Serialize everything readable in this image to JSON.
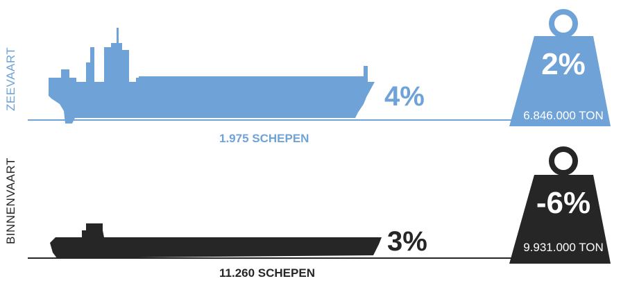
{
  "colors": {
    "sea": "#6fa3d8",
    "inland": "#262626",
    "white": "#ffffff"
  },
  "sea": {
    "label": "ZEEVAART",
    "change_pct": "4%",
    "ships": "1.975 SCHEPEN",
    "weight_pct": "2%",
    "weight_ton": "6.846.000 TON"
  },
  "inland": {
    "label": "BINNENVAART",
    "change_pct": "3%",
    "ships": "11.260 SCHEPEN",
    "weight_pct": "-6%",
    "weight_ton": "9.931.000 TON"
  },
  "icons": {
    "sea_ship": "container-ship-icon",
    "inland_ship": "barge-icon",
    "sea_weight": "weight-icon",
    "inland_weight": "weight-icon"
  }
}
